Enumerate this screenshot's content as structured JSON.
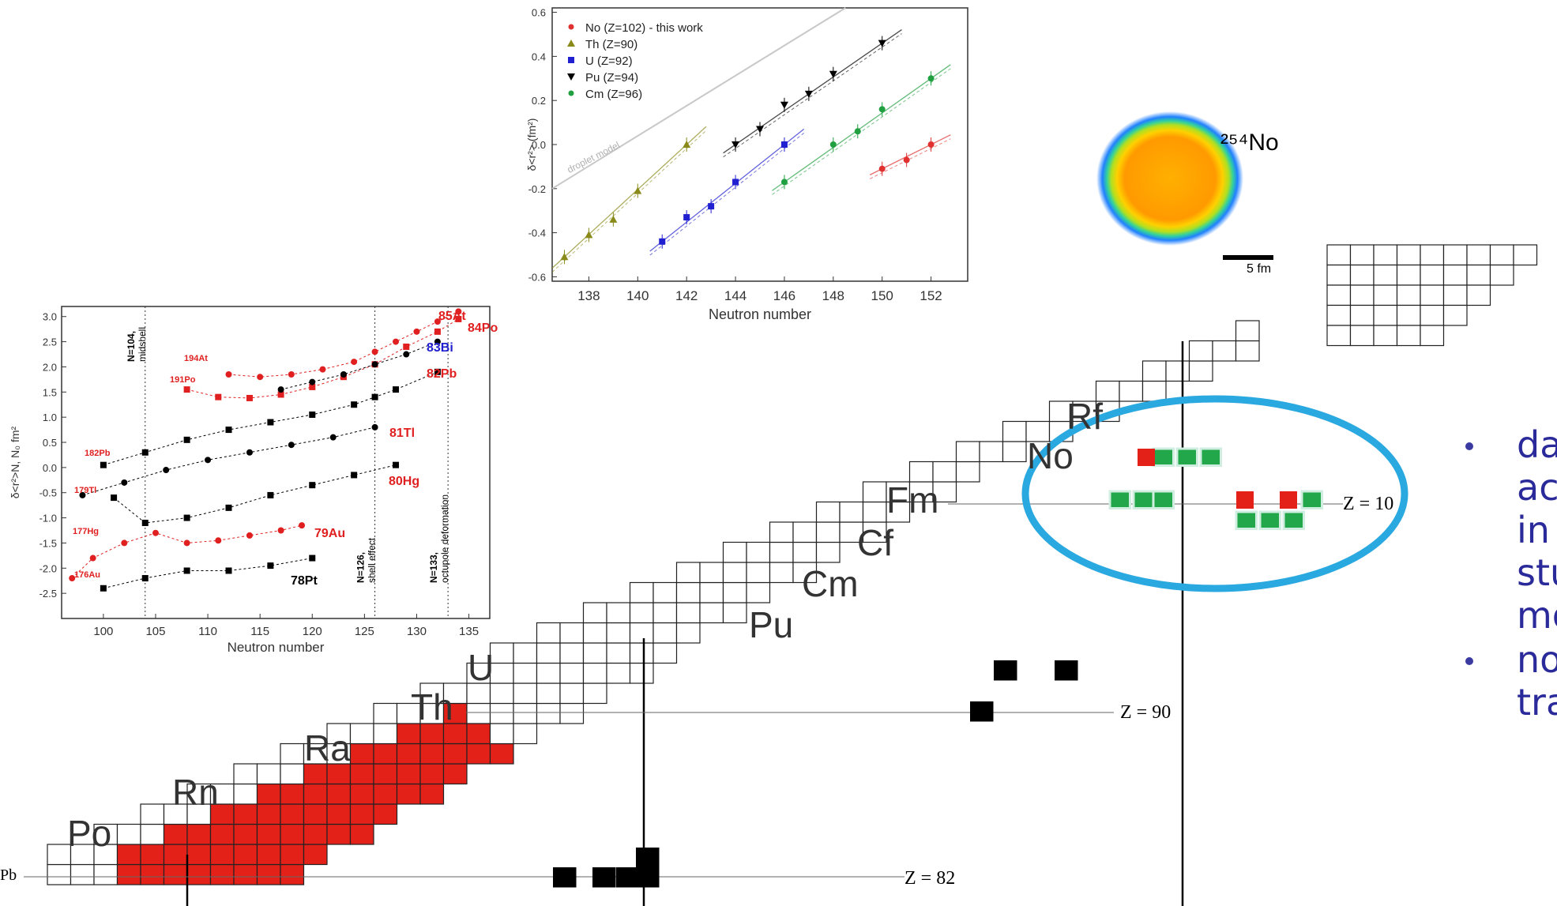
{
  "chart_data": [
    {
      "type": "scatter",
      "title": "",
      "xlabel": "Neutron number",
      "ylabel": "δ<r²> (fm²)",
      "xlim": [
        136.5,
        153.5
      ],
      "ylim": [
        -0.62,
        0.62
      ],
      "xticks": [
        "138",
        "140",
        "142",
        "144",
        "146",
        "148",
        "150",
        "152"
      ],
      "yticks": [
        "-0.6",
        "-0.4",
        "-0.2",
        "0.0",
        "0.2",
        "0.4",
        "0.6"
      ],
      "legend_position": "top-left",
      "annotation": "droplet model",
      "series": [
        {
          "name": "No (Z=102) - this work",
          "color": "#e03030",
          "marker": "circle",
          "x": [
            150,
            151,
            152
          ],
          "y": [
            -0.11,
            -0.07,
            0.0
          ]
        },
        {
          "name": "Th (Z=90)",
          "color": "#8a8a1a",
          "marker": "triangle",
          "x": [
            137,
            138,
            139,
            140,
            142
          ],
          "y": [
            -0.51,
            -0.41,
            -0.34,
            -0.21,
            0.0
          ]
        },
        {
          "name": "U (Z=92)",
          "color": "#2020d0",
          "marker": "square",
          "x": [
            141,
            142,
            143,
            144,
            146
          ],
          "y": [
            -0.44,
            -0.33,
            -0.28,
            -0.17,
            0.0
          ]
        },
        {
          "name": "Pu (Z=94)",
          "color": "#000000",
          "marker": "triangle-down",
          "x": [
            144,
            145,
            146,
            147,
            148,
            150
          ],
          "y": [
            0.0,
            0.07,
            0.18,
            0.23,
            0.32,
            0.46
          ]
        },
        {
          "name": "Cm (Z=96)",
          "color": "#20a040",
          "marker": "circle",
          "x": [
            146,
            148,
            149,
            150,
            152
          ],
          "y": [
            -0.17,
            0.0,
            0.06,
            0.16,
            0.3
          ]
        }
      ]
    },
    {
      "type": "scatter",
      "title": "",
      "xlabel": "Neutron number",
      "ylabel": "δ<r²>N, N₀ fm²",
      "xlim": [
        96,
        137
      ],
      "ylim": [
        -3.0,
        3.2
      ],
      "xticks": [
        "100",
        "105",
        "110",
        "115",
        "120",
        "125",
        "130",
        "135"
      ],
      "yticks": [
        "3.0",
        "2.5",
        "2.0",
        "1.5",
        "1.0",
        "0.5",
        "0.0",
        "-0.5",
        "-1.0",
        "-1.5",
        "-2.0",
        "-2.5"
      ],
      "markers": [
        {
          "n": 104,
          "label": "N=104,",
          "sub": "midshell"
        },
        {
          "n": 126,
          "label": "N=126,",
          "sub": "shell effect"
        },
        {
          "n": 133,
          "label": "N=133,",
          "sub": "octupole deformation"
        }
      ],
      "labels": [
        {
          "text": "85At",
          "color": "#e02020"
        },
        {
          "text": "84Po",
          "color": "#e02020"
        },
        {
          "text": "83Bi",
          "color": "#2020d0"
        },
        {
          "text": "82Pb",
          "color": "#e02020"
        },
        {
          "text": "81Tl",
          "color": "#e02020"
        },
        {
          "text": "80Hg",
          "color": "#e02020"
        },
        {
          "text": "79Au",
          "color": "#e02020"
        },
        {
          "text": "78Pt",
          "color": "#000000"
        },
        {
          "text": "194At",
          "color": "#e02020"
        },
        {
          "text": "191Po",
          "color": "#e02020"
        },
        {
          "text": "182Pb",
          "color": "#e02020"
        },
        {
          "text": "179Tl",
          "color": "#e02020"
        },
        {
          "text": "177Hg",
          "color": "#e02020"
        },
        {
          "text": "176Au",
          "color": "#e02020"
        }
      ],
      "series": [
        {
          "name": "Po",
          "color": "#e02020",
          "x": [
            112,
            115,
            118,
            121,
            124,
            126,
            128,
            130,
            132,
            134
          ],
          "y": [
            1.85,
            1.8,
            1.85,
            1.95,
            2.1,
            2.3,
            2.5,
            2.7,
            2.9,
            3.1
          ]
        },
        {
          "name": "At",
          "color": "#e02020",
          "x": [
            108,
            111,
            114,
            117,
            120,
            123,
            126,
            129,
            132,
            134
          ],
          "y": [
            1.55,
            1.4,
            1.38,
            1.45,
            1.6,
            1.8,
            2.05,
            2.4,
            2.7,
            2.95
          ]
        },
        {
          "name": "Bi",
          "color": "#000000",
          "x": [
            117,
            120,
            123,
            126,
            129,
            132
          ],
          "y": [
            1.55,
            1.7,
            1.85,
            2.05,
            2.25,
            2.5
          ]
        },
        {
          "name": "Pb",
          "color": "#000000",
          "x": [
            100,
            104,
            108,
            112,
            116,
            120,
            124,
            126,
            128,
            132
          ],
          "y": [
            0.05,
            0.3,
            0.55,
            0.75,
            0.9,
            1.05,
            1.25,
            1.4,
            1.55,
            1.9
          ]
        },
        {
          "name": "Tl",
          "color": "#000000",
          "x": [
            98,
            102,
            106,
            110,
            114,
            118,
            122,
            126
          ],
          "y": [
            -0.55,
            -0.3,
            -0.05,
            0.15,
            0.3,
            0.45,
            0.6,
            0.8
          ]
        },
        {
          "name": "Hg",
          "color": "#000000",
          "x": [
            101,
            104,
            108,
            112,
            116,
            120,
            124,
            128
          ],
          "y": [
            -0.6,
            -1.1,
            -1.0,
            -0.8,
            -0.55,
            -0.35,
            -0.15,
            0.05
          ]
        },
        {
          "name": "Au",
          "color": "#e02020",
          "x": [
            97,
            99,
            102,
            105,
            108,
            111,
            114,
            117,
            119
          ],
          "y": [
            -2.2,
            -1.8,
            -1.5,
            -1.3,
            -1.5,
            -1.45,
            -1.35,
            -1.25,
            -1.15
          ]
        },
        {
          "name": "Pt",
          "color": "#000000",
          "x": [
            100,
            104,
            108,
            112,
            116,
            120
          ],
          "y": [
            -2.4,
            -2.2,
            -2.05,
            -2.05,
            -1.95,
            -1.8
          ]
        }
      ]
    }
  ],
  "nuclide_chart": {
    "element_labels": [
      "Pb",
      "Po",
      "Rn",
      "Ra",
      "Th",
      "U",
      "Pu",
      "Cm",
      "Cf",
      "Fm",
      "No",
      "Rf"
    ],
    "z_labels": [
      "Z = 82",
      "Z = 90",
      "Z = 10"
    ],
    "colors": {
      "stable": "#e32119",
      "grid": "#000000",
      "cell": "#ffffff",
      "highlight": "#22a84a",
      "ellipse": "#2aa8e0"
    }
  },
  "inset": {
    "label": "²⁵⁴No",
    "scale": "5 fm"
  },
  "bullets": [
    {
      "lines": [
        "da",
        "ac",
        "in",
        "stu",
        "mo"
      ]
    },
    {
      "lines": [
        "no",
        "tra"
      ]
    }
  ]
}
